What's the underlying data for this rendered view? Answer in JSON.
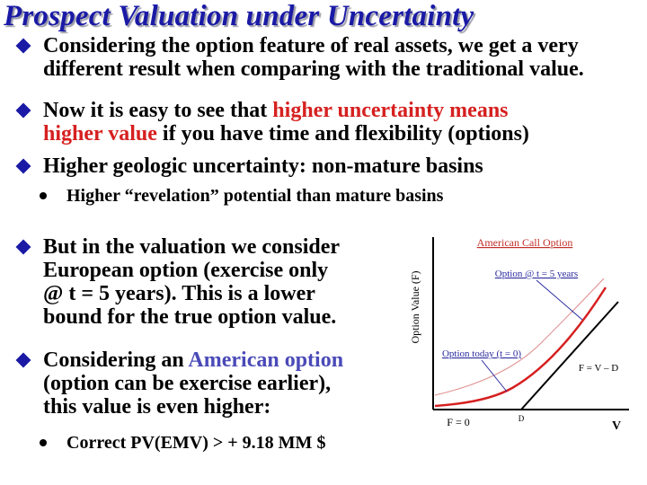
{
  "title": "Prospect Valuation under Uncertainty",
  "bullets": {
    "b1": {
      "line1": "Considering the option feature of real assets, we get a very",
      "line2": "different result when comparing with the traditional value."
    },
    "b2": {
      "line1_pre": "Now it is easy to see that ",
      "line1_red": "higher uncertainty means",
      "line2_red": "higher value",
      "line2_post": " if you have time and flexibility (options)"
    },
    "b3": {
      "line1": "Higher geologic uncertainty: non-mature basins"
    },
    "b3_sub": {
      "line1": "Higher “revelation” potential than mature basins"
    },
    "b4": {
      "line1": "But in the valuation we consider",
      "line2": "European option (exercise only",
      "line3": "@ t = 5 years). This is a lower",
      "line4": "bound for the true option value."
    },
    "b5": {
      "line1_pre": "Considering an ",
      "line1_blue": "American option",
      "line2": "(option can be exercise earlier),",
      "line3": "this value is even higher:"
    },
    "b5_sub": {
      "line1": "Correct PV(EMV) > + 9.18 MM $"
    }
  },
  "colors": {
    "title": "#1a1aa6",
    "bullet_marker": "#1a1aa6",
    "highlight_red": "#d62020",
    "highlight_blue": "#4a4ab8",
    "chart_label_red": "#c0302a",
    "chart_label_blue": "#2a2aa0"
  },
  "icons": {
    "level1": "diamond-bullet-icon",
    "level2": "round-bullet-icon"
  },
  "chart": {
    "ylabel": "Option Value (F)",
    "xlabel": "V",
    "labels": {
      "american": "American Call Option",
      "option5": "Option @ t = 5 years",
      "option_today": "Option today (t = 0)",
      "payoff": "F = V – D",
      "f0": "F = 0",
      "d_tick": "D"
    }
  }
}
